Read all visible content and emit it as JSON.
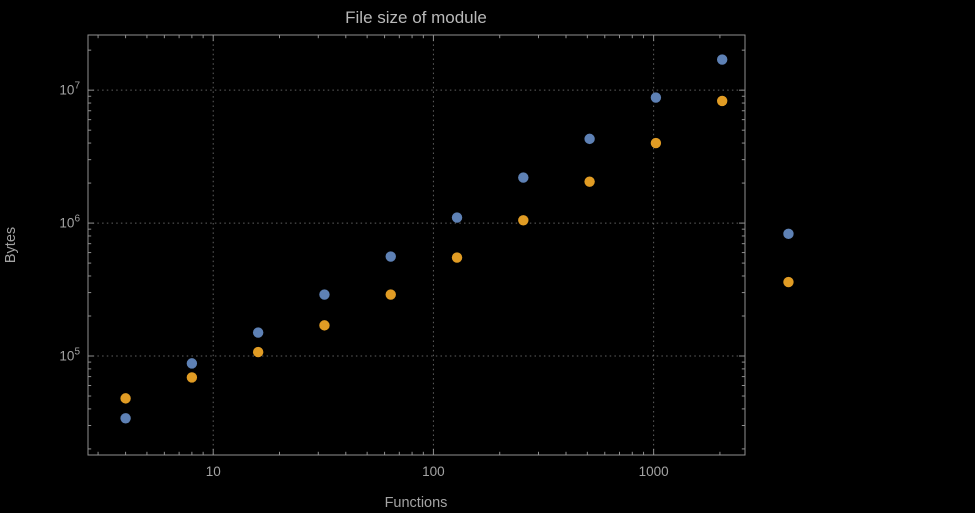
{
  "page": {
    "background": "#000000"
  },
  "chart_data": {
    "type": "scatter",
    "title": "File size of module",
    "xlabel": "Functions",
    "ylabel": "Bytes",
    "x_scale": "log",
    "y_scale": "log",
    "xlim": [
      2.7,
      2600
    ],
    "ylim": [
      18000,
      26000000
    ],
    "x_ticks": [
      10,
      100,
      1000
    ],
    "x_tick_labels": [
      "10",
      "100",
      "1000"
    ],
    "y_ticks": [
      100000,
      1000000,
      10000000
    ],
    "y_tick_exponents": [
      5,
      6,
      7
    ],
    "grid": "dotted-major",
    "legend": "none",
    "series": [
      {
        "name": "series-1-blue",
        "color": "#5e81b5",
        "points": [
          [
            4,
            34000
          ],
          [
            8,
            88000
          ],
          [
            16,
            150000
          ],
          [
            32,
            290000
          ],
          [
            64,
            560000
          ],
          [
            128,
            1100000
          ],
          [
            256,
            2200000
          ],
          [
            512,
            4300000
          ],
          [
            1024,
            8800000
          ],
          [
            2048,
            17000000
          ],
          [
            4096,
            830000
          ]
        ]
      },
      {
        "name": "series-2-orange",
        "color": "#e19c24",
        "points": [
          [
            4,
            48000
          ],
          [
            8,
            69000
          ],
          [
            16,
            107000
          ],
          [
            32,
            170000
          ],
          [
            64,
            290000
          ],
          [
            128,
            550000
          ],
          [
            256,
            1050000
          ],
          [
            512,
            2050000
          ],
          [
            1024,
            4000000
          ],
          [
            2048,
            8300000
          ],
          [
            4096,
            360000
          ]
        ]
      }
    ],
    "style": {
      "frame_color": "#8f8f8f",
      "grid_color": "#606060",
      "text_color": "#a3a3a3",
      "title_color": "#b9b9b9",
      "point_radius": 5.2
    }
  }
}
